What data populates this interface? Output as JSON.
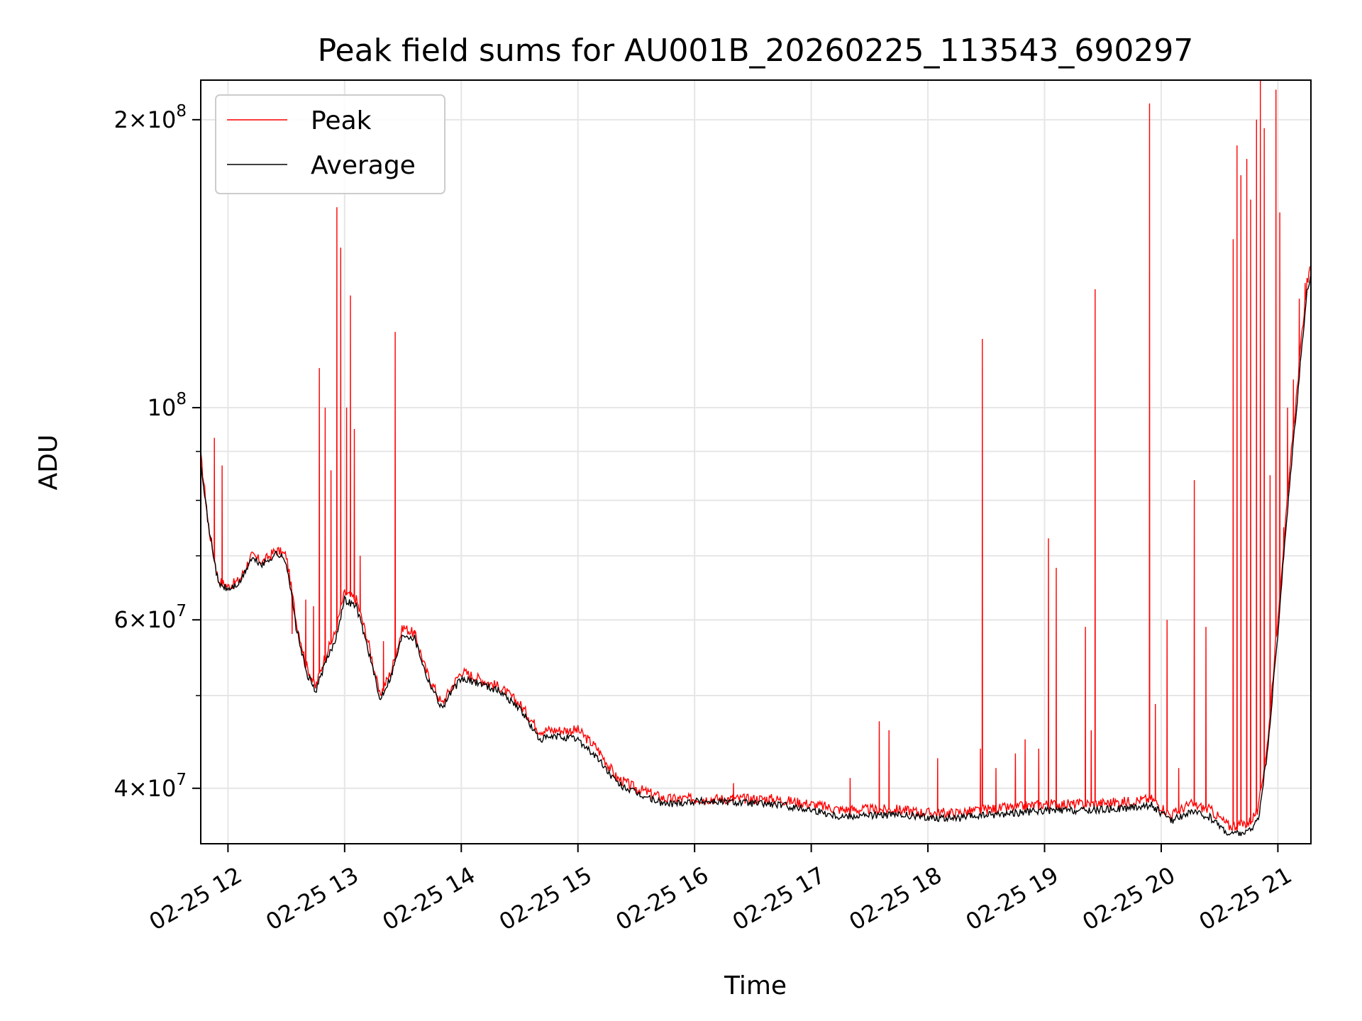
{
  "chart_data": {
    "type": "line",
    "title": "Peak field sums for AU001B_20260225_113543_690297",
    "xlabel": "Time",
    "ylabel": "ADU",
    "yscale": "log",
    "xlim": [
      "02-25 11:46",
      "02-25 21:17"
    ],
    "ylim": [
      35000000,
      220000000
    ],
    "grid": true,
    "legend_placement": "top-left",
    "x_ticks": [
      "02-25 12",
      "02-25 13",
      "02-25 14",
      "02-25 15",
      "02-25 16",
      "02-25 17",
      "02-25 18",
      "02-25 19",
      "02-25 20",
      "02-25 21"
    ],
    "y_ticks": [
      {
        "value": 200000000,
        "label": "2×10^8"
      },
      {
        "value": 100000000,
        "label": "10^8"
      },
      {
        "value": 60000000,
        "label": "6×10^7"
      },
      {
        "value": 40000000,
        "label": "4×10^7"
      }
    ],
    "y_minor_ticks": [
      50000000,
      70000000,
      80000000,
      90000000
    ],
    "series": [
      {
        "name": "Peak",
        "color": "#ff0000",
        "baseline": [
          [
            "02-25 11:46",
            89000000
          ],
          [
            "02-25 11:50",
            75000000
          ],
          [
            "02-25 11:55",
            66000000
          ],
          [
            "02-25 12:00",
            65000000
          ],
          [
            "02-25 12:06",
            66000000
          ],
          [
            "02-25 12:12",
            70000000
          ],
          [
            "02-25 12:18",
            69000000
          ],
          [
            "02-25 12:25",
            71000000
          ],
          [
            "02-25 12:30",
            70000000
          ],
          [
            "02-25 12:35",
            60000000
          ],
          [
            "02-25 12:40",
            54000000
          ],
          [
            "02-25 12:45",
            51000000
          ],
          [
            "02-25 12:50",
            55000000
          ],
          [
            "02-25 12:55",
            58000000
          ],
          [
            "02-25 13:00",
            64000000
          ],
          [
            "02-25 13:06",
            63000000
          ],
          [
            "02-25 13:12",
            57000000
          ],
          [
            "02-25 13:18",
            50000000
          ],
          [
            "02-25 13:24",
            53000000
          ],
          [
            "02-25 13:30",
            59000000
          ],
          [
            "02-25 13:36",
            58000000
          ],
          [
            "02-25 13:42",
            53000000
          ],
          [
            "02-25 13:50",
            49000000
          ],
          [
            "02-25 13:55",
            51000000
          ],
          [
            "02-25 14:00",
            53000000
          ],
          [
            "02-25 14:10",
            52000000
          ],
          [
            "02-25 14:20",
            51000000
          ],
          [
            "02-25 14:30",
            49000000
          ],
          [
            "02-25 14:40",
            46000000
          ],
          [
            "02-25 14:50",
            46000000
          ],
          [
            "02-25 15:00",
            46000000
          ],
          [
            "02-25 15:10",
            44000000
          ],
          [
            "02-25 15:20",
            41000000
          ],
          [
            "02-25 15:30",
            40000000
          ],
          [
            "02-25 15:45",
            39000000
          ],
          [
            "02-25 16:00",
            39000000
          ],
          [
            "02-25 16:20",
            39000000
          ],
          [
            "02-25 16:40",
            39000000
          ],
          [
            "02-25 17:00",
            38500000
          ],
          [
            "02-25 17:15",
            38000000
          ],
          [
            "02-25 17:30",
            38000000
          ],
          [
            "02-25 17:45",
            38000000
          ],
          [
            "02-25 18:00",
            37700000
          ],
          [
            "02-25 18:15",
            37700000
          ],
          [
            "02-25 18:30",
            38000000
          ],
          [
            "02-25 18:45",
            38200000
          ],
          [
            "02-25 19:00",
            38500000
          ],
          [
            "02-25 19:20",
            38500000
          ],
          [
            "02-25 19:40",
            38700000
          ],
          [
            "02-25 19:55",
            39000000
          ],
          [
            "02-25 20:05",
            37500000
          ],
          [
            "02-25 20:15",
            38500000
          ],
          [
            "02-25 20:25",
            38000000
          ],
          [
            "02-25 20:35",
            36500000
          ],
          [
            "02-25 20:45",
            36800000
          ],
          [
            "02-25 20:50",
            38000000
          ],
          [
            "02-25 20:55",
            45000000
          ],
          [
            "02-25 21:00",
            60000000
          ],
          [
            "02-25 21:05",
            80000000
          ],
          [
            "02-25 21:10",
            105000000
          ],
          [
            "02-25 21:15",
            135000000
          ],
          [
            "02-25 21:17",
            140000000
          ]
        ],
        "spikes": [
          [
            "02-25 11:53",
            93000000
          ],
          [
            "02-25 11:57",
            87000000
          ],
          [
            "02-25 12:33",
            58000000
          ],
          [
            "02-25 12:40",
            63000000
          ],
          [
            "02-25 12:44",
            62000000
          ],
          [
            "02-25 12:47",
            110000000
          ],
          [
            "02-25 12:50",
            100000000
          ],
          [
            "02-25 12:53",
            86000000
          ],
          [
            "02-25 12:56",
            162000000
          ],
          [
            "02-25 12:58",
            147000000
          ],
          [
            "02-25 13:01",
            100000000
          ],
          [
            "02-25 13:03",
            131000000
          ],
          [
            "02-25 13:05",
            95000000
          ],
          [
            "02-25 13:08",
            70000000
          ],
          [
            "02-25 13:20",
            57000000
          ],
          [
            "02-25 13:26",
            120000000
          ],
          [
            "02-25 13:36",
            58000000
          ],
          [
            "02-25 16:20",
            40500000
          ],
          [
            "02-25 17:20",
            41000000
          ],
          [
            "02-25 17:35",
            47000000
          ],
          [
            "02-25 17:40",
            46000000
          ],
          [
            "02-25 18:05",
            43000000
          ],
          [
            "02-25 18:27",
            44000000
          ],
          [
            "02-25 18:28",
            118000000
          ],
          [
            "02-25 18:35",
            42000000
          ],
          [
            "02-25 18:45",
            43500000
          ],
          [
            "02-25 18:50",
            45000000
          ],
          [
            "02-25 18:57",
            44000000
          ],
          [
            "02-25 19:02",
            73000000
          ],
          [
            "02-25 19:06",
            68000000
          ],
          [
            "02-25 19:21",
            59000000
          ],
          [
            "02-25 19:24",
            46000000
          ],
          [
            "02-25 19:26",
            133000000
          ],
          [
            "02-25 19:54",
            208000000
          ],
          [
            "02-25 19:57",
            49000000
          ],
          [
            "02-25 20:03",
            60000000
          ],
          [
            "02-25 20:09",
            42000000
          ],
          [
            "02-25 20:17",
            84000000
          ],
          [
            "02-25 20:23",
            59000000
          ],
          [
            "02-25 20:37",
            150000000
          ],
          [
            "02-25 20:39",
            188000000
          ],
          [
            "02-25 20:41",
            175000000
          ],
          [
            "02-25 20:44",
            182000000
          ],
          [
            "02-25 20:46",
            165000000
          ],
          [
            "02-25 20:49",
            200000000
          ],
          [
            "02-25 20:51",
            220000000
          ],
          [
            "02-25 20:53",
            196000000
          ],
          [
            "02-25 20:56",
            85000000
          ],
          [
            "02-25 20:59",
            215000000
          ],
          [
            "02-25 21:01",
            160000000
          ],
          [
            "02-25 21:03",
            75000000
          ],
          [
            "02-25 21:05",
            100000000
          ],
          [
            "02-25 21:08",
            107000000
          ],
          [
            "02-25 21:11",
            130000000
          ],
          [
            "02-25 21:14",
            135000000
          ]
        ]
      },
      {
        "name": "Average",
        "color": "#000000",
        "values": [
          [
            "02-25 11:46",
            88000000
          ],
          [
            "02-25 11:50",
            75000000
          ],
          [
            "02-25 11:55",
            65500000
          ],
          [
            "02-25 12:00",
            64500000
          ],
          [
            "02-25 12:06",
            65500000
          ],
          [
            "02-25 12:12",
            69500000
          ],
          [
            "02-25 12:18",
            68500000
          ],
          [
            "02-25 12:25",
            70500000
          ],
          [
            "02-25 12:30",
            69000000
          ],
          [
            "02-25 12:35",
            59000000
          ],
          [
            "02-25 12:40",
            53000000
          ],
          [
            "02-25 12:45",
            50500000
          ],
          [
            "02-25 12:50",
            54000000
          ],
          [
            "02-25 12:55",
            57000000
          ],
          [
            "02-25 13:00",
            63000000
          ],
          [
            "02-25 13:06",
            62000000
          ],
          [
            "02-25 13:12",
            56000000
          ],
          [
            "02-25 13:18",
            49500000
          ],
          [
            "02-25 13:24",
            52500000
          ],
          [
            "02-25 13:30",
            58000000
          ],
          [
            "02-25 13:36",
            57500000
          ],
          [
            "02-25 13:42",
            52500000
          ],
          [
            "02-25 13:50",
            48500000
          ],
          [
            "02-25 13:55",
            50500000
          ],
          [
            "02-25 14:00",
            52000000
          ],
          [
            "02-25 14:10",
            51500000
          ],
          [
            "02-25 14:20",
            50500000
          ],
          [
            "02-25 14:30",
            48500000
          ],
          [
            "02-25 14:40",
            45000000
          ],
          [
            "02-25 14:50",
            45300000
          ],
          [
            "02-25 15:00",
            45000000
          ],
          [
            "02-25 15:10",
            43000000
          ],
          [
            "02-25 15:20",
            40500000
          ],
          [
            "02-25 15:30",
            39500000
          ],
          [
            "02-25 15:45",
            38500000
          ],
          [
            "02-25 16:00",
            38800000
          ],
          [
            "02-25 16:20",
            38700000
          ],
          [
            "02-25 16:40",
            38500000
          ],
          [
            "02-25 17:00",
            38000000
          ],
          [
            "02-25 17:15",
            37400000
          ],
          [
            "02-25 17:30",
            37500000
          ],
          [
            "02-25 17:45",
            37500000
          ],
          [
            "02-25 18:00",
            37300000
          ],
          [
            "02-25 18:15",
            37200000
          ],
          [
            "02-25 18:30",
            37500000
          ],
          [
            "02-25 18:45",
            37700000
          ],
          [
            "02-25 19:00",
            37900000
          ],
          [
            "02-25 19:20",
            37900000
          ],
          [
            "02-25 19:40",
            38100000
          ],
          [
            "02-25 19:55",
            38400000
          ],
          [
            "02-25 20:05",
            37000000
          ],
          [
            "02-25 20:15",
            37800000
          ],
          [
            "02-25 20:25",
            37300000
          ],
          [
            "02-25 20:35",
            35800000
          ],
          [
            "02-25 20:45",
            36000000
          ],
          [
            "02-25 20:50",
            37200000
          ],
          [
            "02-25 20:55",
            44000000
          ],
          [
            "02-25 21:00",
            58000000
          ],
          [
            "02-25 21:05",
            78000000
          ],
          [
            "02-25 21:10",
            102000000
          ],
          [
            "02-25 21:15",
            132000000
          ],
          [
            "02-25 21:17",
            138000000
          ]
        ]
      }
    ]
  }
}
